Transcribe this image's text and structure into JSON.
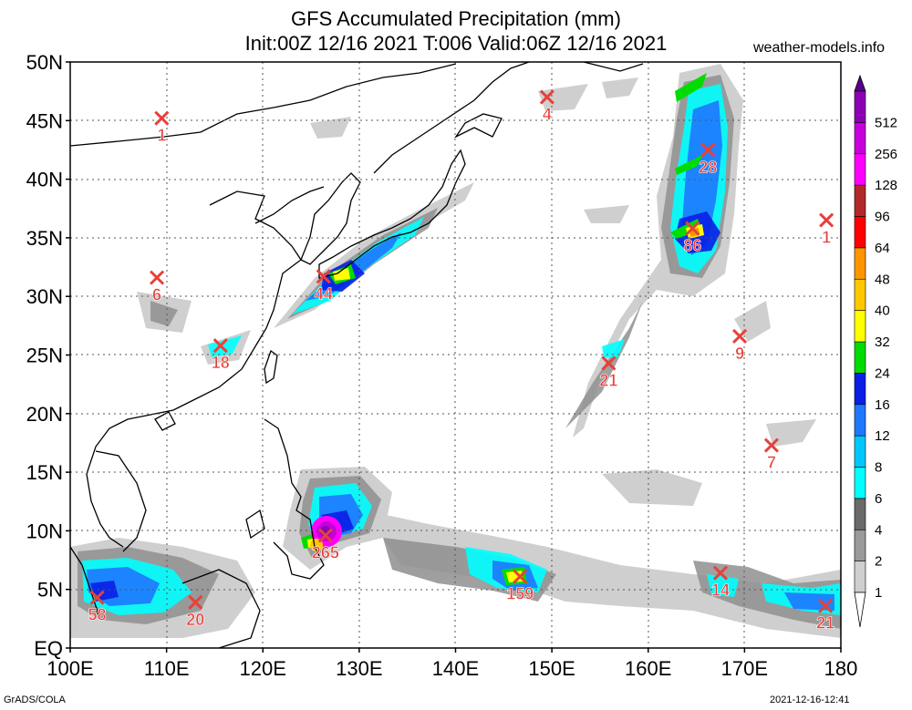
{
  "title": {
    "line1": "GFS Accumulated Precipitation (mm)",
    "line2": "Init:00Z 12/16 2021 T:006 Valid:06Z 12/16 2021"
  },
  "credit": "weather-models.info",
  "footer": {
    "left": "GrADS/COLA",
    "right": "2021-12-16-12:41"
  },
  "axes": {
    "lat_labels": [
      "EQ",
      "5N",
      "10N",
      "15N",
      "20N",
      "25N",
      "30N",
      "35N",
      "40N",
      "45N",
      "50N"
    ],
    "lon_labels": [
      "100E",
      "110E",
      "120E",
      "130E",
      "140E",
      "150E",
      "160E",
      "170E",
      "180"
    ]
  },
  "colorbar": {
    "levels": [
      "1",
      "2",
      "4",
      "6",
      "8",
      "12",
      "16",
      "24",
      "32",
      "40",
      "48",
      "64",
      "96",
      "128",
      "256",
      "512"
    ],
    "colors": [
      "#ffffff",
      "#cfcfcf",
      "#9a9a9a",
      "#6a6a6a",
      "#00ffff",
      "#00c8ff",
      "#1e78ff",
      "#0a1ee6",
      "#00dc00",
      "#ffff00",
      "#ffc800",
      "#ff9600",
      "#ff0000",
      "#b22828",
      "#ff00ff",
      "#c800dc",
      "#8c00b4",
      "#5a008c"
    ]
  },
  "markers": [
    {
      "lon": 109.5,
      "lat": 45.2,
      "value": "1"
    },
    {
      "lon": 149.5,
      "lat": 47.0,
      "value": "4"
    },
    {
      "lon": 178.5,
      "lat": 36.5,
      "value": "1"
    },
    {
      "lon": 166.2,
      "lat": 42.5,
      "value": "28"
    },
    {
      "lon": 164.6,
      "lat": 35.8,
      "value": "86"
    },
    {
      "lon": 109.0,
      "lat": 31.6,
      "value": "6"
    },
    {
      "lon": 126.3,
      "lat": 31.7,
      "value": "44"
    },
    {
      "lon": 115.6,
      "lat": 25.8,
      "value": "18"
    },
    {
      "lon": 155.9,
      "lat": 24.3,
      "value": "21"
    },
    {
      "lon": 169.5,
      "lat": 26.6,
      "value": "9"
    },
    {
      "lon": 172.8,
      "lat": 17.3,
      "value": "7"
    },
    {
      "lon": 126.5,
      "lat": 9.6,
      "value": "265"
    },
    {
      "lon": 146.7,
      "lat": 6.1,
      "value": "159"
    },
    {
      "lon": 167.5,
      "lat": 6.4,
      "value": "14"
    },
    {
      "lon": 102.8,
      "lat": 4.3,
      "value": "58"
    },
    {
      "lon": 113.0,
      "lat": 3.9,
      "value": "20"
    },
    {
      "lon": 178.4,
      "lat": 3.6,
      "value": "21"
    }
  ]
}
